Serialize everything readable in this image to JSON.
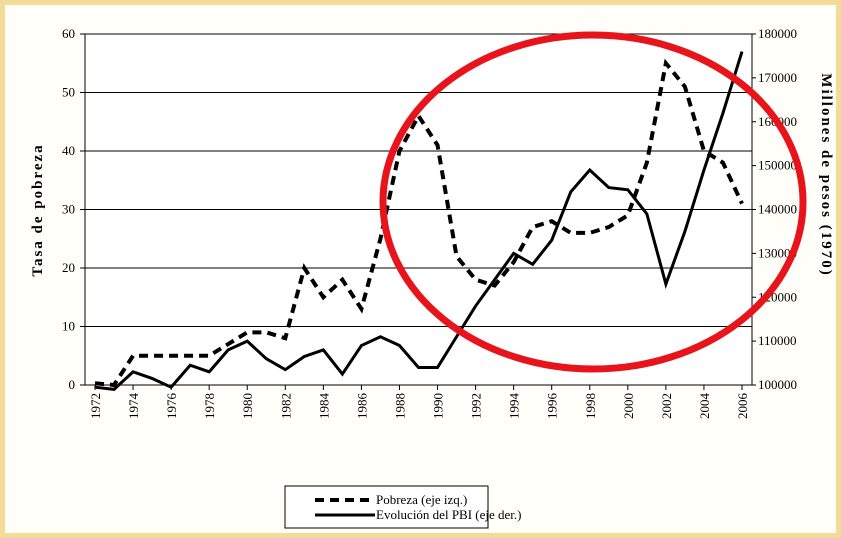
{
  "chart_data": {
    "type": "line",
    "y_label": "Tasa de pobreza",
    "y2_label": "Millones de pesos (1970)",
    "x": [
      1972,
      1973,
      1974,
      1975,
      1976,
      1977,
      1978,
      1979,
      1980,
      1981,
      1982,
      1983,
      1984,
      1985,
      1986,
      1987,
      1988,
      1989,
      1990,
      1991,
      1992,
      1993,
      1994,
      1995,
      1996,
      1997,
      1998,
      1999,
      2000,
      2001,
      2002,
      2003,
      2004,
      2005,
      2006
    ],
    "xlim": [
      1972,
      2006
    ],
    "xticks": [
      1972,
      1974,
      1976,
      1978,
      1980,
      1982,
      1984,
      1986,
      1988,
      1990,
      1992,
      1994,
      1996,
      1998,
      2000,
      2002,
      2004,
      2006
    ],
    "ylim": [
      0,
      60
    ],
    "yticks": [
      0,
      10,
      20,
      30,
      40,
      50,
      60
    ],
    "y2lim": [
      100000,
      180000
    ],
    "y2ticks": [
      100000,
      110000,
      120000,
      130000,
      140000,
      150000,
      160000,
      170000,
      180000
    ],
    "grid": true,
    "series": [
      {
        "name": "Pobreza (eje izq.)",
        "color": "#000000",
        "line_style": "dashed",
        "axis": "y",
        "values": [
          0.3,
          0,
          5,
          5,
          5,
          5,
          5,
          7,
          9,
          9,
          8,
          20,
          15,
          18,
          13,
          25,
          40,
          46,
          41,
          22,
          18,
          17,
          21,
          27,
          28,
          26,
          26,
          27,
          29,
          38,
          55,
          51,
          40,
          38,
          31
        ]
      },
      {
        "name": "Evolución del PBI (eje der.)",
        "color": "#000000",
        "line_style": "solid",
        "axis": "y2",
        "values": [
          99500,
          99000,
          103000,
          101500,
          99500,
          104500,
          103000,
          108000,
          110000,
          106000,
          103500,
          106500,
          108000,
          102500,
          109000,
          111000,
          109000,
          104000,
          104000,
          111000,
          118000,
          124000,
          130000,
          127500,
          133000,
          144000,
          149000,
          145000,
          144500,
          139000,
          123000,
          135000,
          149000,
          162000,
          176000
        ]
      }
    ]
  }
}
